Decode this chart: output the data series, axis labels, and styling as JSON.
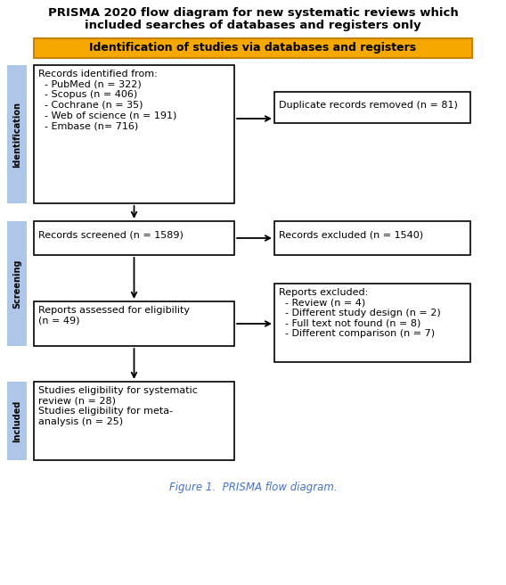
{
  "title_line1": "PRISMA 2020 flow diagram for new systematic reviews which",
  "title_line2": "included searches of databases and registers only",
  "title_fontsize": 9.5,
  "id_banner": "Identification of studies via databases and registers",
  "id_banner_color": "#F5A800",
  "id_banner_border_color": "#C88000",
  "id_banner_text_color": "#000000",
  "sidebar_color": "#AEC6E8",
  "box1_text": "Records identified from:\n  - PubMed (n = 322)\n  - Scopus (n = 406)\n  - Cochrane (n = 35)\n  - Web of science (n = 191)\n  - Embase (n= 716)",
  "box2_text": "Duplicate records removed (n = 81)",
  "box3_text": "Records screened (n = 1589)",
  "box4_text": "Records excluded (n = 1540)",
  "box5_text": "Reports assessed for eligibility\n(n = 49)",
  "box6_text": "Reports excluded:\n  - Review (n = 4)\n  - Different study design (n = 2)\n  - Full text not found (n = 8)\n  - Different comparison (n = 7)",
  "box7_text": "Studies eligibility for systematic\nreview (n = 28)\nStudies eligibility for meta-\nanalysis (n = 25)",
  "caption": "Figure 1.  PRISMA flow diagram.",
  "caption_color": "#4472C4",
  "text_fontsize": 8.0,
  "caption_fontsize": 8.5
}
